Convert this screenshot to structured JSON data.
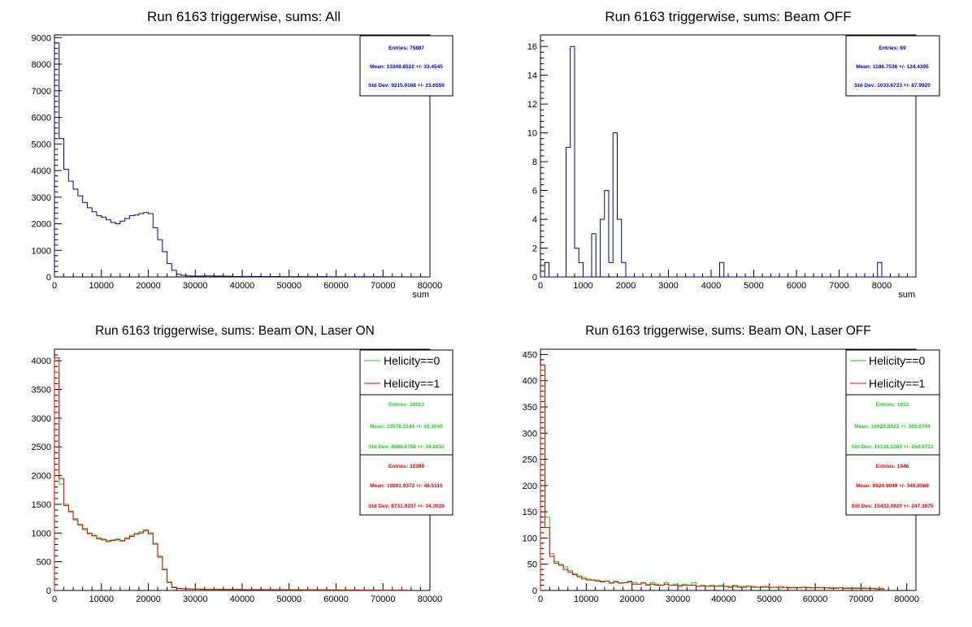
{
  "colors": {
    "all": "#00008b",
    "h0": "#22cc22",
    "h1": "#dd0000",
    "axis": "#000000"
  },
  "chart_data": [
    {
      "type": "histogram",
      "title": "Run 6163 triggerwise, sums: All",
      "xlabel": "sum",
      "xlim": [
        0,
        80000
      ],
      "ylim": [
        0,
        9100
      ],
      "xticks": [
        0,
        10000,
        20000,
        30000,
        40000,
        50000,
        60000,
        70000,
        80000
      ],
      "yticks": [
        0,
        1000,
        2000,
        3000,
        4000,
        5000,
        6000,
        7000,
        8000,
        9000
      ],
      "stats_boxes": [
        {
          "color": "#0000cc",
          "entries": "Entries: 75887",
          "mean": "Mean: 10348.8522 +/- 33.4545",
          "stddev": "Std Dev: 9215.9168 +/- 23.6559"
        }
      ],
      "legend": [],
      "series": [
        {
          "color_key": "all",
          "bin_width": 1000,
          "x_start": 0,
          "values": [
            8800,
            5200,
            4050,
            3600,
            3300,
            3050,
            2800,
            2600,
            2450,
            2300,
            2250,
            2150,
            2050,
            2000,
            2100,
            2200,
            2300,
            2330,
            2380,
            2420,
            2380,
            1850,
            1400,
            950,
            500,
            250,
            100,
            60,
            40,
            35,
            30,
            30,
            40,
            35,
            30,
            30,
            25,
            25,
            20,
            20,
            20,
            20,
            18,
            18,
            15,
            15,
            15,
            15,
            12,
            12,
            12,
            12,
            10,
            10,
            10,
            10,
            10,
            10,
            8,
            8,
            8,
            8,
            8,
            8,
            8,
            6,
            6,
            6,
            6,
            6,
            6,
            5,
            5,
            5,
            5
          ]
        }
      ]
    },
    {
      "type": "histogram",
      "title": "Run 6163 triggerwise, sums: Beam OFF",
      "xlabel": "sum",
      "xlim": [
        0,
        8800
      ],
      "ylim": [
        0,
        16.8
      ],
      "xticks": [
        0,
        1000,
        2000,
        3000,
        4000,
        5000,
        6000,
        7000,
        8000
      ],
      "yticks": [
        0,
        2,
        4,
        6,
        8,
        10,
        12,
        14,
        16
      ],
      "stats_boxes": [
        {
          "color": "#0000cc",
          "entries": "Entries: 69",
          "mean": "Mean: 1186.7536 +/- 124.4395",
          "stddev": "Std Dev: 1033.6723 +/- 87.9920"
        }
      ],
      "legend": [],
      "series": [
        {
          "color_key": "all",
          "bin_width": 100,
          "x_start": 0,
          "values": [
            0,
            1,
            0,
            0,
            0,
            0,
            9,
            16,
            2,
            1,
            0,
            0,
            3,
            0,
            4,
            6,
            1,
            10,
            4,
            1,
            0,
            0,
            0,
            0,
            0,
            0,
            0,
            0,
            0,
            0,
            0,
            0,
            0,
            0,
            0,
            0,
            0,
            0,
            0,
            0,
            0,
            0,
            1,
            0,
            0,
            0,
            0,
            0,
            0,
            0,
            0,
            0,
            0,
            0,
            0,
            0,
            0,
            0,
            0,
            0,
            0,
            0,
            0,
            0,
            0,
            0,
            0,
            0,
            0,
            0,
            0,
            0,
            0,
            0,
            0,
            0,
            0,
            0,
            0,
            1,
            0,
            0,
            0,
            0,
            0,
            0,
            0,
            0
          ]
        }
      ]
    },
    {
      "type": "histogram",
      "title": "Run 6163 triggerwise, sums: Beam ON, Laser ON",
      "xlabel": "",
      "xlim": [
        0,
        80000
      ],
      "ylim": [
        0,
        4200
      ],
      "xticks": [
        0,
        10000,
        20000,
        30000,
        40000,
        50000,
        60000,
        70000,
        80000
      ],
      "yticks": [
        0,
        500,
        1000,
        1500,
        2000,
        2500,
        3000,
        3500,
        4000
      ],
      "legend": [
        {
          "label": "Helicity==0",
          "color_key": "h0"
        },
        {
          "label": "Helicity==1",
          "color_key": "h1"
        }
      ],
      "stats_boxes": [
        {
          "color": "#22cc22",
          "entries": "Entries: 30913",
          "mean": "Mean: 10578.3144 +/- 49.3040",
          "stddev": "Std Dev: 8668.6766 +/- 34.8632"
        },
        {
          "color": "#dd0000",
          "entries": "Entries: 32399",
          "mean": "Mean: 10201.9372 +/- 48.5115",
          "stddev": "Std Dev: 8731.9337 +/- 34.3028"
        }
      ],
      "series": [
        {
          "color_key": "h0",
          "bin_width": 1000,
          "x_start": 0,
          "values": [
            3800,
            1850,
            1500,
            1380,
            1250,
            1150,
            1080,
            1000,
            960,
            920,
            900,
            870,
            880,
            900,
            870,
            920,
            960,
            1000,
            1020,
            1040,
            980,
            800,
            600,
            380,
            150,
            60,
            40,
            30,
            30,
            25,
            25,
            25,
            20,
            20,
            20,
            20,
            20,
            20,
            20,
            20,
            15,
            15,
            15,
            15,
            15,
            15,
            15,
            12,
            12,
            12,
            12,
            12,
            12,
            10,
            10,
            10,
            10,
            10,
            10,
            10,
            10,
            8,
            8,
            8,
            8,
            8,
            8,
            8,
            8,
            6,
            6,
            6,
            6,
            6,
            6
          ]
        },
        {
          "color_key": "h1",
          "bin_width": 1000,
          "x_start": 0,
          "values": [
            4050,
            1950,
            1480,
            1370,
            1230,
            1140,
            1060,
            990,
            950,
            900,
            880,
            850,
            870,
            880,
            860,
            900,
            940,
            980,
            1000,
            1050,
            1000,
            820,
            580,
            360,
            140,
            50,
            35,
            30,
            25,
            25,
            25,
            20,
            20,
            20,
            20,
            18,
            18,
            18,
            18,
            18,
            15,
            15,
            15,
            15,
            15,
            12,
            12,
            12,
            12,
            12,
            12,
            10,
            10,
            10,
            10,
            10,
            10,
            10,
            8,
            8,
            8,
            8,
            8,
            8,
            8,
            6,
            6,
            6,
            6,
            6,
            6,
            5,
            5,
            5,
            5
          ]
        }
      ]
    },
    {
      "type": "histogram",
      "title": "Run 6163 triggerwise, sums: Beam ON, Laser OFF",
      "xlabel": "",
      "xlim": [
        0,
        82000
      ],
      "ylim": [
        0,
        460
      ],
      "xticks": [
        0,
        10000,
        20000,
        30000,
        40000,
        50000,
        60000,
        70000,
        80000
      ],
      "yticks": [
        0,
        50,
        100,
        150,
        200,
        250,
        300,
        350,
        400,
        450
      ],
      "legend": [
        {
          "label": "Helicity==0",
          "color_key": "h0"
        },
        {
          "label": "Helicity==1",
          "color_key": "h1"
        }
      ],
      "stats_boxes": [
        {
          "color": "#22cc22",
          "entries": "Entries: 1912",
          "mean": "Mean: 10620.8923 +/- 369.0704",
          "stddev": "Std Dev: 16138.1283 +/- 260.9722"
        },
        {
          "color": "#dd0000",
          "entries": "Entries: 1946",
          "mean": "Mean: 9924.9049 +/- 349.8588",
          "stddev": "Std Dev: 15433.4920 +/- 247.3875"
        }
      ],
      "series": [
        {
          "color_key": "h0",
          "bin_width": 1000,
          "x_start": 0,
          "values": [
            420,
            140,
            70,
            55,
            50,
            45,
            38,
            32,
            28,
            25,
            22,
            20,
            20,
            18,
            18,
            15,
            18,
            15,
            15,
            18,
            15,
            12,
            15,
            12,
            15,
            12,
            10,
            15,
            10,
            12,
            10,
            12,
            10,
            15,
            8,
            10,
            8,
            10,
            8,
            10,
            8,
            8,
            10,
            8,
            8,
            8,
            8,
            6,
            8,
            8,
            6,
            6,
            8,
            6,
            6,
            6,
            6,
            6,
            6,
            5,
            6,
            5,
            5,
            6,
            5,
            5,
            5,
            5,
            5,
            5,
            5,
            4,
            4,
            4,
            4
          ]
        },
        {
          "color_key": "h1",
          "bin_width": 1000,
          "x_start": 0,
          "values": [
            430,
            120,
            65,
            52,
            48,
            40,
            35,
            30,
            26,
            22,
            20,
            20,
            18,
            16,
            18,
            14,
            16,
            14,
            15,
            16,
            12,
            12,
            14,
            10,
            12,
            10,
            10,
            12,
            10,
            10,
            8,
            10,
            10,
            10,
            8,
            8,
            8,
            8,
            8,
            8,
            8,
            6,
            8,
            6,
            6,
            8,
            6,
            6,
            6,
            6,
            6,
            6,
            5,
            6,
            5,
            5,
            5,
            6,
            5,
            5,
            5,
            5,
            5,
            4,
            4,
            5,
            4,
            4,
            4,
            4,
            4,
            4,
            4,
            3,
            3
          ]
        }
      ]
    }
  ]
}
